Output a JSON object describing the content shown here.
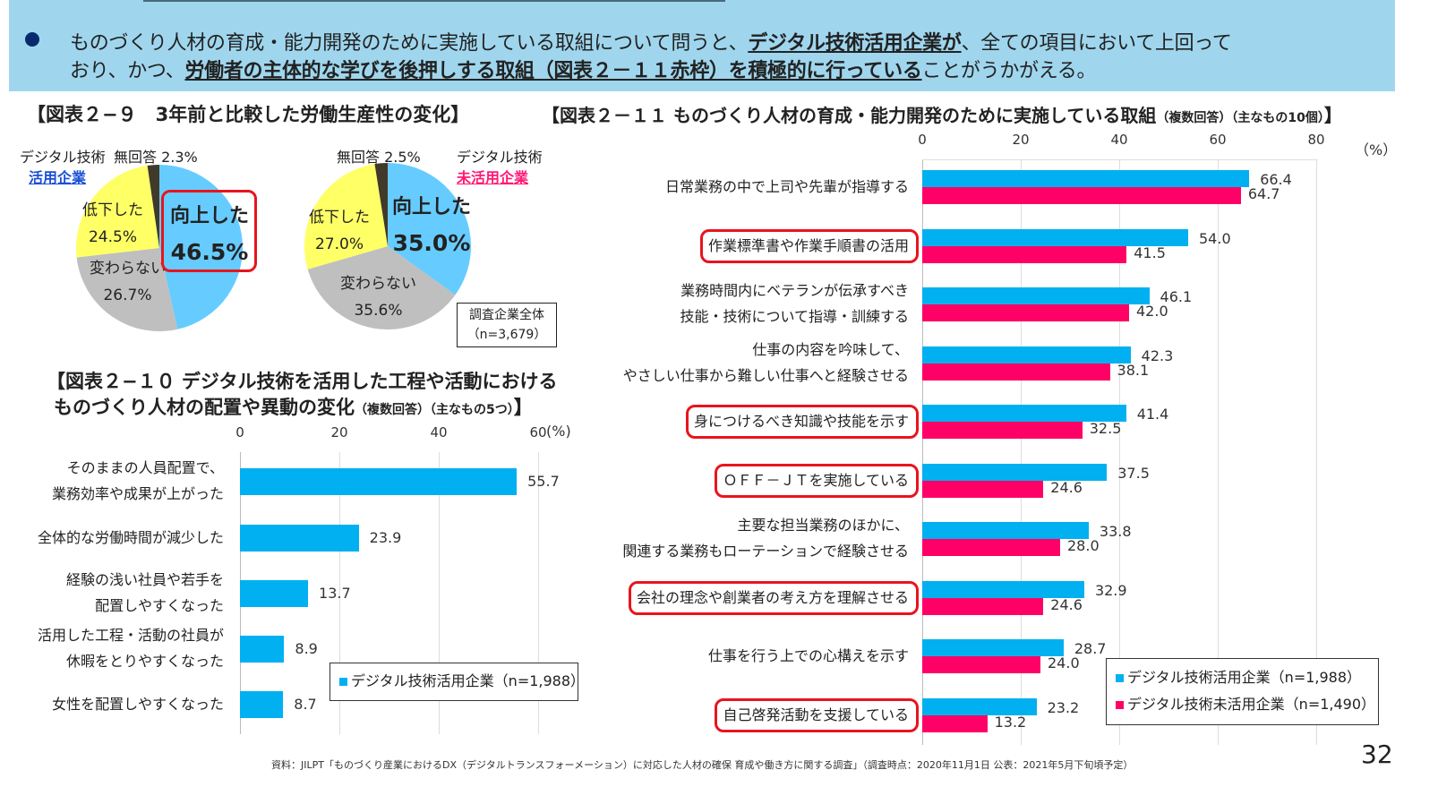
{
  "banner": {
    "line1_pre": "ものづくり人材の育成・能力開発のために実施している取組について問うと、",
    "line1_bold": "デジタル技術活用企業が",
    "line1_post": "、全ての項目において上回って",
    "line2_pre": "おり、かつ、",
    "line2_bold": "労働者の主体的な学びを後押しする取組（図表２－１１赤枠）を積極的に行っている",
    "line2_post": "ことがうかがえる。"
  },
  "fig29": {
    "title": "【図表２−９　3年前と比較した労働生産性の変化】",
    "total_box": {
      "line1": "調査企業全体",
      "line2": "（n=3,679）"
    },
    "pies": [
      {
        "name_line1": "デジタル技術",
        "name_line2": "活用企業",
        "name_color": "#1a4fd6",
        "slices": [
          {
            "label": "向上した",
            "value": 46.5,
            "value_text": "46.5%",
            "color": "#66ccff",
            "highlighted": true
          },
          {
            "label": "変わらない",
            "value": 26.7,
            "value_text": "26.7%",
            "color": "#bfbfbf"
          },
          {
            "label": "低下した",
            "value": 24.5,
            "value_text": "24.5%",
            "color": "#ffff66"
          },
          {
            "label": "無回答",
            "value": 2.3,
            "value_text": "2.3%",
            "color": "#403a2a"
          }
        ]
      },
      {
        "name_line1": "デジタル技術",
        "name_line2": "未活用企業",
        "name_color": "#ff1a75",
        "slices": [
          {
            "label": "向上した",
            "value": 35.0,
            "value_text": "35.0%",
            "color": "#66ccff"
          },
          {
            "label": "変わらない",
            "value": 35.6,
            "value_text": "35.6%",
            "color": "#bfbfbf"
          },
          {
            "label": "低下した",
            "value": 27.0,
            "value_text": "27.0%",
            "color": "#ffff66"
          },
          {
            "label": "無回答",
            "value": 2.5,
            "value_text": "2.5%",
            "color": "#403a2a"
          }
        ]
      }
    ]
  },
  "fig210": {
    "title_line1": "【図表２−１０  デジタル技術を活用した工程や活動における",
    "title_line2": "ものづくり人材の配置や異動の変化",
    "title_note": "（複数回答）（主なもの5つ）",
    "title_end": "】",
    "unit": "(%)",
    "legend": "デジタル技術活用企業（n=1,988）"
  },
  "fig211": {
    "title": "【図表２－１１  ものづくり人材の育成・能力開発のために実施している取組",
    "title_note": "（複数回答）（主なもの10個）",
    "title_end": "】",
    "unit": "（%）",
    "legend": [
      "デジタル技術活用企業（n=1,988）",
      "デジタル技術未活用企業（n=1,490）"
    ]
  },
  "chart_data": [
    {
      "type": "pie",
      "name": "デジタル技術活用企業",
      "categories": [
        "向上した",
        "変わらない",
        "低下した",
        "無回答"
      ],
      "values": [
        46.5,
        26.7,
        24.5,
        2.3
      ]
    },
    {
      "type": "pie",
      "name": "デジタル技術未活用企業",
      "categories": [
        "向上した",
        "変わらない",
        "低下した",
        "無回答"
      ],
      "values": [
        35.0,
        35.6,
        27.0,
        2.5
      ]
    },
    {
      "type": "bar",
      "orientation": "horizontal",
      "xlim": [
        0,
        60
      ],
      "ticks": [
        "0",
        "20",
        "40",
        "60"
      ],
      "grid": true,
      "categories": [
        [
          "そのままの人員配置で、",
          "業務効率や成果が上がった"
        ],
        [
          "全体的な労働時間が減少した"
        ],
        [
          "経験の浅い社員や若手を",
          "配置しやすくなった"
        ],
        [
          "活用した工程・活動の社員が",
          "休暇をとりやすくなった"
        ],
        [
          "女性を配置しやすくなった"
        ]
      ],
      "series": [
        {
          "name": "デジタル技術活用企業（n=1,988）",
          "color": "#00b0f0",
          "values": [
            55.7,
            23.9,
            13.7,
            8.9,
            8.7
          ]
        }
      ],
      "legend": "bottom-right"
    },
    {
      "type": "bar",
      "orientation": "horizontal",
      "xlim": [
        0,
        80
      ],
      "ticks": [
        "0",
        "20",
        "40",
        "60",
        "80"
      ],
      "grid": true,
      "categories": [
        [
          "日常業務の中で上司や先輩が指導する"
        ],
        [
          "作業標準書や作業手順書の活用"
        ],
        [
          "業務時間内にベテランが伝承すべき",
          "技能・技術について指導・訓練する"
        ],
        [
          "仕事の内容を吟味して、",
          "やさしい仕事から難しい仕事へと経験させる"
        ],
        [
          "身につけるべき知識や技能を示す"
        ],
        [
          "ＯＦＦ－ＪＴを実施している"
        ],
        [
          "主要な担当業務のほかに、",
          "関連する業務もローテーションで経験させる"
        ],
        [
          "会社の理念や創業者の考え方を理解させる"
        ],
        [
          "仕事を行う上での心構えを示す"
        ],
        [
          "自己啓発活動を支援している"
        ]
      ],
      "highlighted": [
        false,
        true,
        false,
        false,
        true,
        true,
        false,
        true,
        false,
        true
      ],
      "series": [
        {
          "name": "デジタル技術活用企業（n=1,988）",
          "color": "#00b0f0",
          "values": [
            66.4,
            54.0,
            46.1,
            42.3,
            41.4,
            37.5,
            33.8,
            32.9,
            28.7,
            23.2
          ]
        },
        {
          "name": "デジタル技術未活用企業（n=1,490）",
          "color": "#ff0066",
          "values": [
            64.7,
            41.5,
            42.0,
            38.1,
            32.5,
            24.6,
            28.0,
            24.6,
            24.0,
            13.2
          ]
        }
      ],
      "legend": "bottom-right"
    }
  ],
  "footer": {
    "source": "資料：JILPT「ものづくり産業におけるDX（デジタルトランスフォーメーション）に対応した人材の確保 育成や働き方に関する調査」（調査時点：2020年11月1日  公表：2021年5月下旬頃予定）",
    "page_number": "32"
  }
}
